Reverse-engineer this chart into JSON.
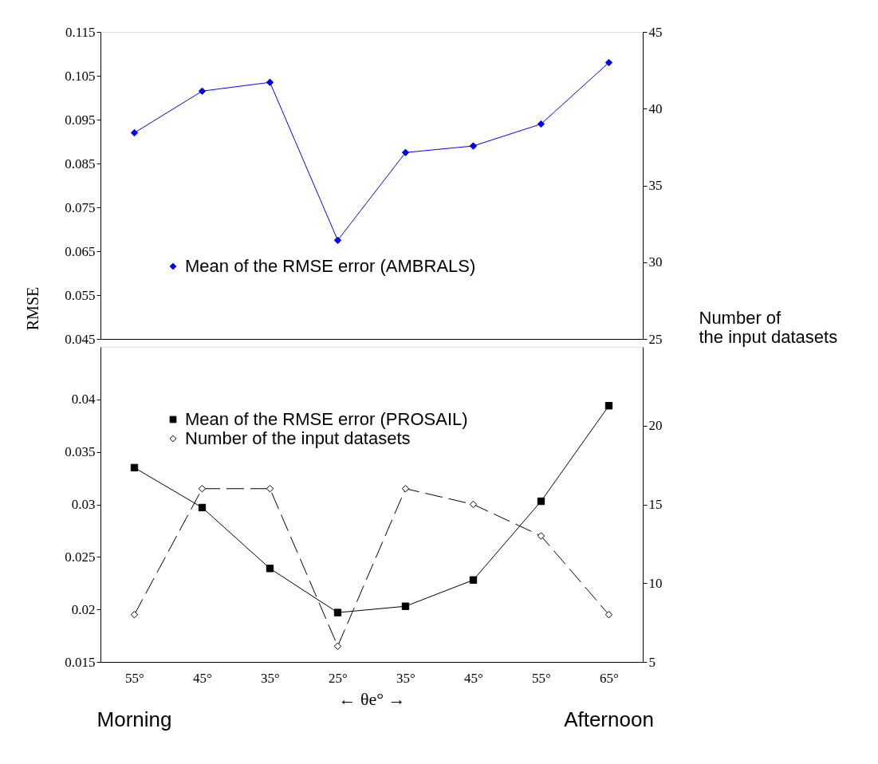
{
  "chart_data": [
    {
      "type": "line",
      "categories": [
        null,
        null,
        null,
        null,
        null,
        null,
        null,
        null
      ],
      "ylabel": "RMSE",
      "y2label": "Number of the input datasets",
      "series": [
        {
          "name": "Mean of the RMSE error (AMBRALS)",
          "color": "#0000ff",
          "axis": "y",
          "marker": "diamond",
          "line_style": "solid",
          "values": [
            0.092,
            0.1015,
            0.1035,
            0.0675,
            0.0875,
            0.089,
            0.094,
            0.108
          ]
        }
      ],
      "ylim": [
        0.045,
        0.115
      ],
      "yticks": [
        0.045,
        0.055,
        0.065,
        0.075,
        0.085,
        0.095,
        0.105,
        0.115
      ],
      "y2lim": [
        25,
        45
      ],
      "y2ticks": [
        25,
        30,
        35,
        40,
        45
      ],
      "tick_labels": "y",
      "grid": false,
      "legend": "bottom"
    },
    {
      "type": "line",
      "categories": [
        "55°",
        "45°",
        "35°",
        "25°",
        "35°",
        "45°",
        "55°",
        "65°"
      ],
      "xlabel": "←  θe°  →",
      "annotations": [
        "Morning",
        "Afternoon"
      ],
      "series": [
        {
          "name": "Mean of the RMSE error (PROSAIL)",
          "color": "#000000",
          "axis": "y",
          "marker": "square",
          "line_style": "solid",
          "values": [
            0.0335,
            0.0297,
            0.0239,
            0.0197,
            0.0203,
            0.0228,
            0.0303,
            0.0394
          ]
        },
        {
          "name": "Number of the input datasets",
          "color": "#000000",
          "axis": "y2",
          "marker": "diamond",
          "line_style": "dashed",
          "values": [
            8,
            16,
            16,
            6,
            16,
            15,
            13,
            8
          ]
        }
      ],
      "ylim": [
        0.015,
        0.045
      ],
      "yticks": [
        0.015,
        0.02,
        0.025,
        0.03,
        0.035,
        0.04
      ],
      "y2lim": [
        5,
        25
      ],
      "y2ticks": [
        5,
        10,
        15,
        20
      ],
      "grid": false,
      "legend": "top"
    }
  ]
}
